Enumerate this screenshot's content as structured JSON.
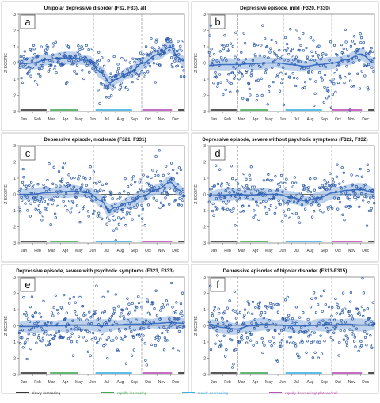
{
  "panels": [
    {
      "letter": "a",
      "title": "Unipolar depressive disorder (F32, F33), all"
    },
    {
      "letter": "b",
      "title": "Depressive episode, mild (F320, F330)"
    },
    {
      "letter": "c",
      "title": "Depressive episode, moderate (F321, F331)"
    },
    {
      "letter": "d",
      "title": "Depressive episode, severe without psychotic symptoms (F322, F332)"
    },
    {
      "letter": "e",
      "title": "Depressive episode, severe with psychotic symptoms (F323, F333)"
    },
    {
      "letter": "f",
      "title": "Depressive episodes of bipolar disorder (F313-F315)"
    }
  ],
  "ylabel": "Z-SCORE",
  "months": [
    "Jan",
    "Feb",
    "Mar",
    "Apr",
    "May",
    "Jun",
    "Jul",
    "Aug",
    "Sep",
    "Oct",
    "Nov",
    "Dec"
  ],
  "yticks": [
    "3",
    "2",
    "1",
    "0",
    "-1",
    "-2",
    "-3"
  ],
  "legend": [
    {
      "label": "slowly increasing",
      "color": "#222222"
    },
    {
      "label": "rapidly increasing",
      "color": "#2ea043"
    },
    {
      "label": "slowly decreasing",
      "color": "#27a9e1"
    },
    {
      "label": "rapidly decreasing/ plateau/trail",
      "color": "#b43fb0"
    }
  ],
  "colors": {
    "point": "#2a5aa8",
    "smooth": "#3f72c4",
    "band": "#a9c3e6",
    "frame": "#7f7f7f",
    "zero": "#333333",
    "dash": "#9a9a9a"
  },
  "chart_data": [
    {
      "type": "scatter",
      "panel": "a",
      "title": "Unipolar depressive disorder (F32, F33), all",
      "xlabel": "",
      "ylabel": "Z-SCORE",
      "xlim": [
        "Jan",
        "Dec"
      ],
      "ylim": [
        -3,
        3
      ],
      "segments": [
        {
          "from": "Jan",
          "to": "Mar",
          "trend": "slowly increasing"
        },
        {
          "from": "Mar",
          "to": "May",
          "trend": "rapidly increasing"
        },
        {
          "from": "Jul",
          "to": "Sep",
          "trend": "slowly decreasing"
        },
        {
          "from": "Oct",
          "to": "Nov",
          "trend": "rapidly decreasing/ plateau/trail"
        }
      ],
      "smooth": {
        "x": [
          0,
          1,
          2,
          3,
          4,
          5,
          6,
          6.6,
          7,
          8,
          9,
          10,
          11,
          11.5,
          12
        ],
        "y": [
          -0.05,
          0,
          0.2,
          0.3,
          0.3,
          0.15,
          -0.6,
          -1.25,
          -1.0,
          -0.6,
          0.0,
          0.5,
          1.0,
          0.35,
          0.1
        ]
      }
    },
    {
      "type": "scatter",
      "panel": "b",
      "title": "Depressive episode, mild (F320, F330)",
      "xlabel": "",
      "ylabel": "Z-SCORE",
      "xlim": [
        "Jan",
        "Dec"
      ],
      "ylim": [
        -3,
        3
      ],
      "segments": [
        {
          "from": "Jan",
          "to": "Mar",
          "trend": "slowly increasing"
        },
        {
          "from": "Mar",
          "to": "May",
          "trend": "rapidly increasing"
        },
        {
          "from": "Jul",
          "to": "Sep",
          "trend": "slowly decreasing"
        },
        {
          "from": "Oct",
          "to": "Nov",
          "trend": "rapidly decreasing/ plateau/trail"
        }
      ],
      "smooth": {
        "x": [
          0,
          1,
          2,
          3,
          4,
          5,
          6,
          7,
          8,
          9,
          10,
          11,
          12
        ],
        "y": [
          -0.15,
          -0.1,
          -0.1,
          -0.05,
          0,
          0,
          -0.1,
          -0.2,
          -0.1,
          0,
          0.2,
          0.55,
          0
        ]
      }
    },
    {
      "type": "scatter",
      "panel": "c",
      "title": "Depressive episode, moderate (F321, F331)",
      "xlabel": "",
      "ylabel": "Z-SCORE",
      "xlim": [
        "Jan",
        "Dec"
      ],
      "ylim": [
        -3,
        3
      ],
      "segments": [
        {
          "from": "Jan",
          "to": "Mar",
          "trend": "slowly increasing"
        },
        {
          "from": "Mar",
          "to": "May",
          "trend": "rapidly increasing"
        },
        {
          "from": "Jul",
          "to": "Sep",
          "trend": "slowly decreasing"
        },
        {
          "from": "Oct",
          "to": "Nov",
          "trend": "rapidly decreasing/ plateau/trail"
        }
      ],
      "smooth": {
        "x": [
          0,
          1,
          2,
          3,
          4,
          5,
          6,
          6.5,
          7,
          8,
          9,
          10,
          11,
          11.5,
          12
        ],
        "y": [
          0,
          0,
          0.1,
          0.15,
          0.2,
          0.1,
          -0.4,
          -1.0,
          -0.8,
          -0.5,
          -0.1,
          0.3,
          0.75,
          0.3,
          0.1
        ]
      }
    },
    {
      "type": "scatter",
      "panel": "d",
      "title": "Depressive episode, severe without psychotic symptoms (F322, F332)",
      "xlabel": "",
      "ylabel": "Z-SCORE",
      "xlim": [
        "Jan",
        "Dec"
      ],
      "ylim": [
        -3,
        3
      ],
      "segments": [
        {
          "from": "Jan",
          "to": "Mar",
          "trend": "slowly increasing"
        },
        {
          "from": "Mar",
          "to": "May",
          "trend": "rapidly increasing"
        },
        {
          "from": "Jul",
          "to": "Sep",
          "trend": "slowly decreasing"
        },
        {
          "from": "Oct",
          "to": "Nov",
          "trend": "rapidly decreasing/ plateau/trail"
        }
      ],
      "smooth": {
        "x": [
          0,
          1,
          2,
          3,
          4,
          5,
          6,
          7,
          8,
          9,
          10,
          11,
          12
        ],
        "y": [
          -0.1,
          -0.05,
          0,
          -0.05,
          0,
          0,
          -0.2,
          -0.4,
          -0.2,
          0.1,
          0.25,
          0.3,
          0.1
        ]
      }
    },
    {
      "type": "scatter",
      "panel": "e",
      "title": "Depressive episode, severe with psychotic symptoms (F323, F333)",
      "xlabel": "",
      "ylabel": "Z-SCORE",
      "xlim": [
        "Jan",
        "Dec"
      ],
      "ylim": [
        -3,
        3
      ],
      "segments": [
        {
          "from": "Jan",
          "to": "Mar",
          "trend": "slowly increasing"
        },
        {
          "from": "Mar",
          "to": "May",
          "trend": "rapidly increasing"
        },
        {
          "from": "Jul",
          "to": "Sep",
          "trend": "slowly decreasing"
        },
        {
          "from": "Oct",
          "to": "Nov",
          "trend": "rapidly decreasing/ plateau/trail"
        }
      ],
      "smooth": {
        "x": [
          0,
          1,
          2,
          3,
          4,
          5,
          6,
          7,
          8,
          9,
          10,
          11,
          12
        ],
        "y": [
          -0.05,
          -0.05,
          0,
          0,
          0.05,
          0.05,
          0,
          0.05,
          0.1,
          0.1,
          0.15,
          0.2,
          0.15
        ]
      }
    },
    {
      "type": "scatter",
      "panel": "f",
      "title": "Depressive episodes of bipolar disorder (F313-F315)",
      "xlabel": "",
      "ylabel": "Z-SCORE",
      "xlim": [
        "Jan",
        "Dec"
      ],
      "ylim": [
        -3,
        3
      ],
      "segments": [
        {
          "from": "Jan",
          "to": "Mar",
          "trend": "slowly increasing"
        },
        {
          "from": "Mar",
          "to": "May",
          "trend": "rapidly increasing"
        },
        {
          "from": "Jul",
          "to": "Sep",
          "trend": "slowly decreasing"
        },
        {
          "from": "Oct",
          "to": "Nov",
          "trend": "rapidly decreasing/ plateau/trail"
        }
      ],
      "smooth": {
        "x": [
          0,
          1,
          2,
          3,
          4,
          5,
          6,
          7,
          8,
          9,
          10,
          11,
          12
        ],
        "y": [
          0.1,
          -0.1,
          -0.2,
          0,
          0.1,
          0.05,
          0,
          0,
          0.05,
          0.05,
          0.1,
          0.05,
          0.05
        ]
      }
    }
  ]
}
